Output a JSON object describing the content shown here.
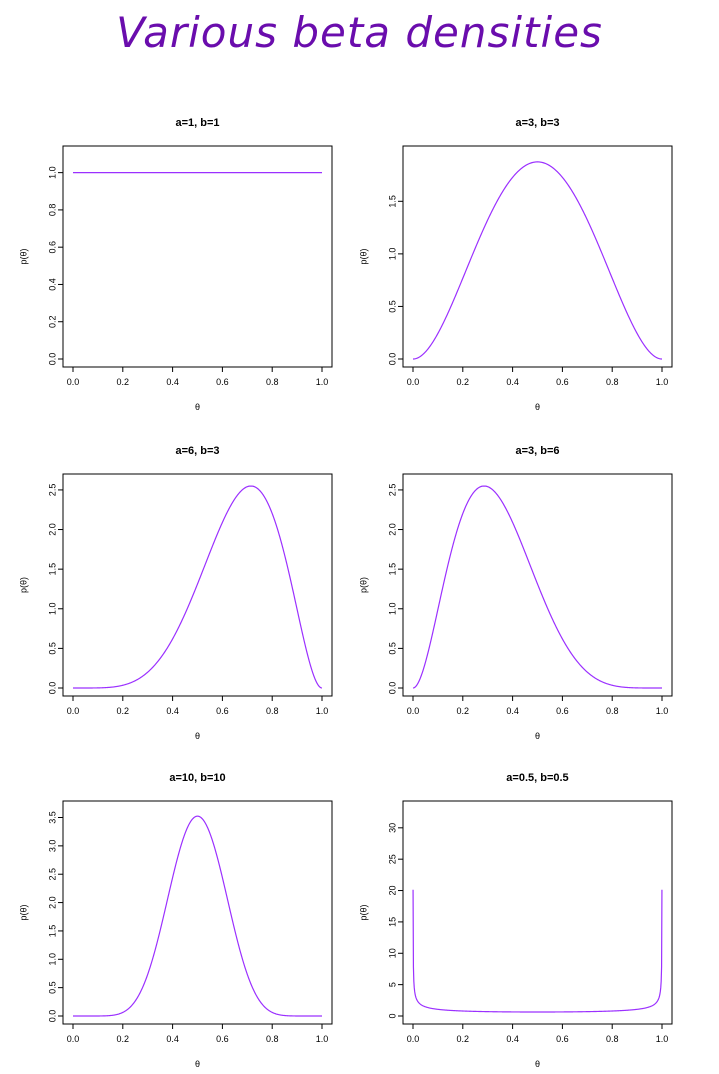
{
  "page_title": "Various beta densities",
  "line_color": "#9b30ff",
  "chart_data": [
    {
      "type": "line",
      "title": "a=1, b=1",
      "a": 1,
      "b": 1,
      "xlabel": "θ",
      "ylabel": "p(θ)",
      "xlim": [
        0,
        1
      ],
      "ylim": [
        0,
        1.1
      ],
      "xticks": [
        0,
        0.2,
        0.4,
        0.6,
        0.8,
        1
      ],
      "xtick_labels": [
        "0.0",
        "0.2",
        "0.4",
        "0.6",
        "0.8",
        "1.0"
      ],
      "yticks": [
        0,
        0.2,
        0.4,
        0.6,
        0.8,
        1
      ],
      "ytick_labels": [
        "0.0",
        "0.2",
        "0.4",
        "0.6",
        "0.8",
        "1.0"
      ]
    },
    {
      "type": "line",
      "title": "a=3, b=3",
      "a": 3,
      "b": 3,
      "xlabel": "θ",
      "ylabel": "p(θ)",
      "xlim": [
        0,
        1
      ],
      "ylim": [
        0,
        1.95
      ],
      "xticks": [
        0,
        0.2,
        0.4,
        0.6,
        0.8,
        1
      ],
      "xtick_labels": [
        "0.0",
        "0.2",
        "0.4",
        "0.6",
        "0.8",
        "1.0"
      ],
      "yticks": [
        0,
        0.5,
        1,
        1.5
      ],
      "ytick_labels": [
        "0.0",
        "0.5",
        "1.0",
        "1.5"
      ]
    },
    {
      "type": "line",
      "title": "a=6, b=3",
      "a": 6,
      "b": 3,
      "xlabel": "θ",
      "ylabel": "p(θ)",
      "xlim": [
        0,
        1
      ],
      "ylim": [
        0,
        2.6
      ],
      "xticks": [
        0,
        0.2,
        0.4,
        0.6,
        0.8,
        1
      ],
      "xtick_labels": [
        "0.0",
        "0.2",
        "0.4",
        "0.6",
        "0.8",
        "1.0"
      ],
      "yticks": [
        0,
        0.5,
        1,
        1.5,
        2,
        2.5
      ],
      "ytick_labels": [
        "0.0",
        "0.5",
        "1.0",
        "1.5",
        "2.0",
        "2.5"
      ]
    },
    {
      "type": "line",
      "title": "a=3, b=6",
      "a": 3,
      "b": 6,
      "xlabel": "θ",
      "ylabel": "p(θ)",
      "xlim": [
        0,
        1
      ],
      "ylim": [
        0,
        2.6
      ],
      "xticks": [
        0,
        0.2,
        0.4,
        0.6,
        0.8,
        1
      ],
      "xtick_labels": [
        "0.0",
        "0.2",
        "0.4",
        "0.6",
        "0.8",
        "1.0"
      ],
      "yticks": [
        0,
        0.5,
        1,
        1.5,
        2,
        2.5
      ],
      "ytick_labels": [
        "0.0",
        "0.5",
        "1.0",
        "1.5",
        "2.0",
        "2.5"
      ]
    },
    {
      "type": "line",
      "title": "a=10, b=10",
      "a": 10,
      "b": 10,
      "xlabel": "θ",
      "ylabel": "p(θ)",
      "xlim": [
        0,
        1
      ],
      "ylim": [
        0,
        3.65
      ],
      "xticks": [
        0,
        0.2,
        0.4,
        0.6,
        0.8,
        1
      ],
      "xtick_labels": [
        "0.0",
        "0.2",
        "0.4",
        "0.6",
        "0.8",
        "1.0"
      ],
      "yticks": [
        0,
        0.5,
        1,
        1.5,
        2,
        2.5,
        3,
        3.5
      ],
      "ytick_labels": [
        "0.0",
        "0.5",
        "1.0",
        "1.5",
        "2.0",
        "2.5",
        "3.0",
        "3.5"
      ]
    },
    {
      "type": "line",
      "title": "a=0.5, b=0.5",
      "a": 0.5,
      "b": 0.5,
      "xlabel": "θ",
      "ylabel": "p(θ)",
      "xlim": [
        0,
        1
      ],
      "ylim": [
        0,
        33
      ],
      "xticks": [
        0,
        0.2,
        0.4,
        0.6,
        0.8,
        1
      ],
      "xtick_labels": [
        "0.0",
        "0.2",
        "0.4",
        "0.6",
        "0.8",
        "1.0"
      ],
      "yticks": [
        0,
        5,
        10,
        15,
        20,
        25,
        30
      ],
      "ytick_labels": [
        "0",
        "5",
        "10",
        "15",
        "20",
        "25",
        "30"
      ]
    }
  ]
}
